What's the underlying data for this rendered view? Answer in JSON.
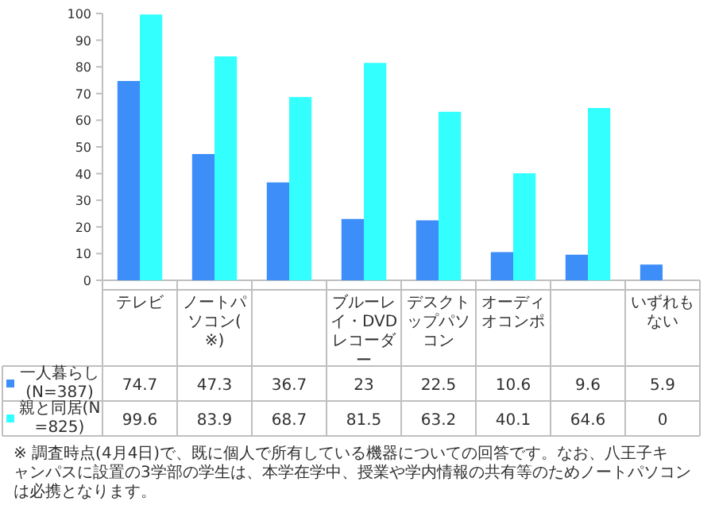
{
  "chart_data": {
    "type": "bar",
    "categories": [
      "テレビ",
      "ノートパソコン(※)",
      null,
      "ブルーレイ・DVDレコーダー",
      "デスクトップパソコン",
      "オーディオコンポ",
      null,
      "いずれもない"
    ],
    "series": [
      {
        "name": "一人暮らし(N=387)",
        "color": "#3d8ef8",
        "values": [
          74.7,
          47.3,
          36.7,
          23,
          22.5,
          10.6,
          9.6,
          5.9
        ]
      },
      {
        "name": "親と同居(N=825)",
        "color": "#33ffff",
        "values": [
          99.6,
          83.9,
          68.7,
          81.5,
          63.2,
          40.1,
          64.6,
          0
        ]
      }
    ],
    "ylim": [
      0,
      100
    ],
    "yticks": [
      0,
      10,
      20,
      30,
      40,
      50,
      60,
      70,
      80,
      90,
      100
    ],
    "data_labels": true,
    "legend": "bottom left",
    "annotations": [
      "※ 調査時点(4月4日)で、既に個人で所有している機器についての回答です。なお、八王子キャンパスに設置の3学部の学生は、本学在学中、授業や学内情報の共有等のためノートパソコンは必携となります。"
    ]
  }
}
